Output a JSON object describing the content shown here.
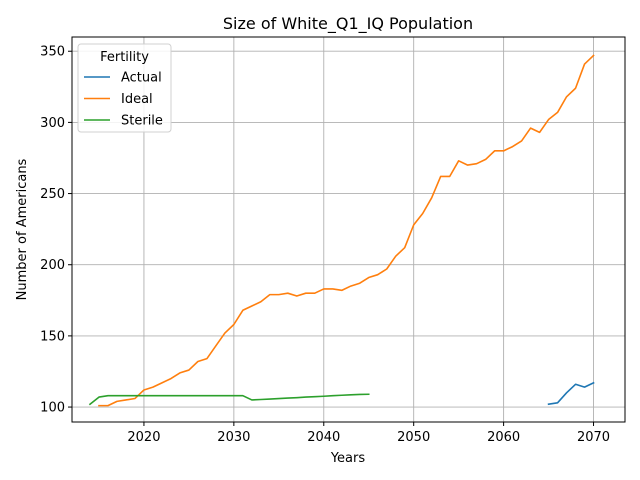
{
  "chart_data": {
    "type": "line",
    "title": "Size of White_Q1_IQ Population",
    "xlabel": "Years",
    "ylabel": "Number of Americans",
    "xlim": [
      2012,
      2073.5
    ],
    "ylim": [
      89.5,
      360
    ],
    "xticks": [
      2020,
      2030,
      2040,
      2050,
      2060,
      2070
    ],
    "yticks": [
      100,
      150,
      200,
      250,
      300,
      350
    ],
    "grid": true,
    "legend": {
      "title": "Fertility",
      "placement": "top-left"
    },
    "series": [
      {
        "name": "Actual",
        "color": "#1f77b4",
        "x": [
          2065,
          2066,
          2067,
          2068,
          2069,
          2070
        ],
        "y": [
          102,
          103,
          110,
          116,
          114,
          117
        ]
      },
      {
        "name": "Ideal",
        "color": "#ff7f0e",
        "x": [
          2015,
          2016,
          2017,
          2018,
          2019,
          2020,
          2021,
          2022,
          2023,
          2024,
          2025,
          2026,
          2027,
          2028,
          2029,
          2030,
          2031,
          2032,
          2033,
          2034,
          2035,
          2036,
          2037,
          2038,
          2039,
          2040,
          2041,
          2042,
          2043,
          2044,
          2045,
          2046,
          2047,
          2048,
          2049,
          2050,
          2051,
          2052,
          2053,
          2054,
          2055,
          2056,
          2057,
          2058,
          2059,
          2060,
          2061,
          2062,
          2063,
          2064,
          2065,
          2066,
          2067,
          2068,
          2069,
          2070
        ],
        "y": [
          101,
          101,
          104,
          105,
          106,
          112,
          114,
          117,
          120,
          124,
          126,
          132,
          134,
          143,
          152,
          158,
          168,
          171,
          174,
          179,
          179,
          180,
          178,
          180,
          180,
          183,
          183,
          182,
          185,
          187,
          191,
          193,
          197,
          206,
          212,
          228,
          236,
          247,
          262,
          262,
          273,
          270,
          271,
          274,
          280,
          280,
          283,
          287,
          296,
          293,
          302,
          307,
          318,
          324,
          341,
          347
        ]
      },
      {
        "name": "Sterile",
        "color": "#2ca02c",
        "x": [
          2014,
          2015,
          2016,
          2017,
          2018,
          2019,
          2020,
          2021,
          2022,
          2023,
          2024,
          2025,
          2026,
          2027,
          2028,
          2029,
          2030,
          2031,
          2032,
          2033,
          2034,
          2035,
          2036,
          2037,
          2038,
          2039,
          2040,
          2041,
          2042,
          2043,
          2044,
          2045
        ],
        "y": [
          102,
          107,
          108,
          108,
          108,
          108,
          108,
          108,
          108,
          108,
          108,
          108,
          108,
          108,
          108,
          108,
          108,
          108,
          105,
          105.3,
          105.6,
          106,
          106.3,
          106.6,
          107,
          107.3,
          107.6,
          108,
          108.3,
          108.6,
          108.9,
          109
        ]
      }
    ]
  }
}
